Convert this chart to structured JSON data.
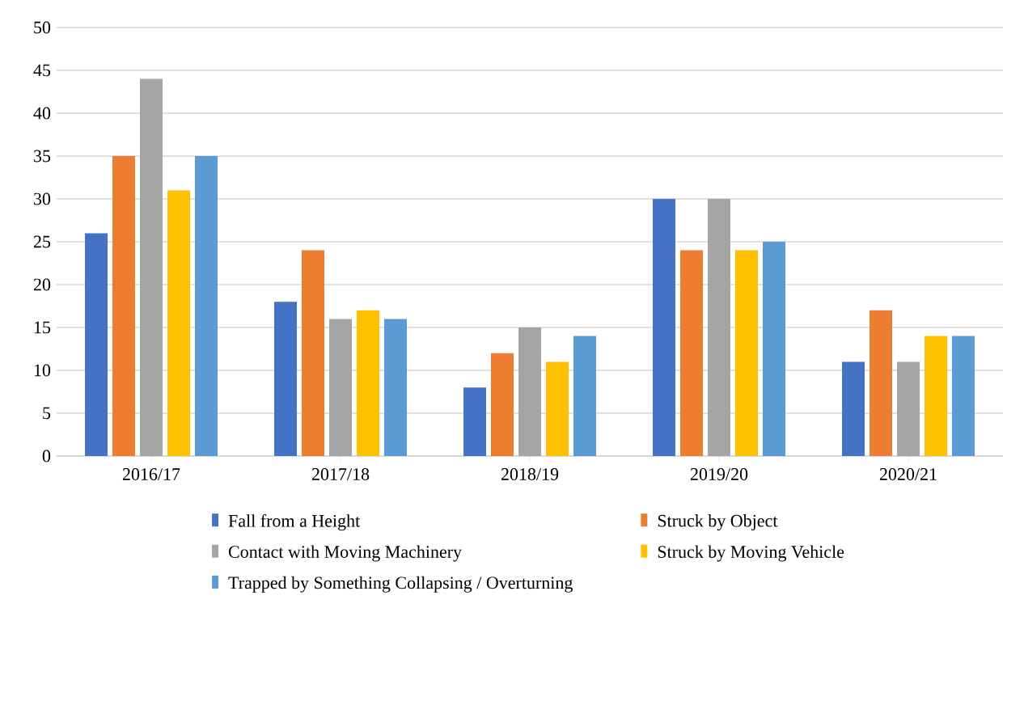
{
  "chart_data": {
    "type": "bar",
    "categories": [
      "2016/17",
      "2017/18",
      "2018/19",
      "2019/20",
      "2020/21"
    ],
    "series": [
      {
        "name": "Fall from a Height",
        "color": "#4472c4",
        "values": [
          26,
          18,
          8,
          30,
          11
        ]
      },
      {
        "name": "Struck by Object",
        "color": "#ed7d31",
        "values": [
          35,
          24,
          12,
          24,
          17
        ]
      },
      {
        "name": "Contact with Moving Machinery",
        "color": "#a5a5a5",
        "values": [
          44,
          16,
          15,
          30,
          11
        ]
      },
      {
        "name": "Struck by Moving Vehicle",
        "color": "#ffc000",
        "values": [
          31,
          17,
          11,
          24,
          14
        ]
      },
      {
        "name": "Trapped by Something Collapsing / Overturning",
        "color": "#5b9bd5",
        "values": [
          35,
          16,
          14,
          25,
          14
        ]
      }
    ],
    "ylim": [
      0,
      50
    ],
    "yticks": [
      0,
      5,
      10,
      15,
      20,
      25,
      30,
      35,
      40,
      45,
      50
    ],
    "grid": "y",
    "legend": "bottom"
  }
}
